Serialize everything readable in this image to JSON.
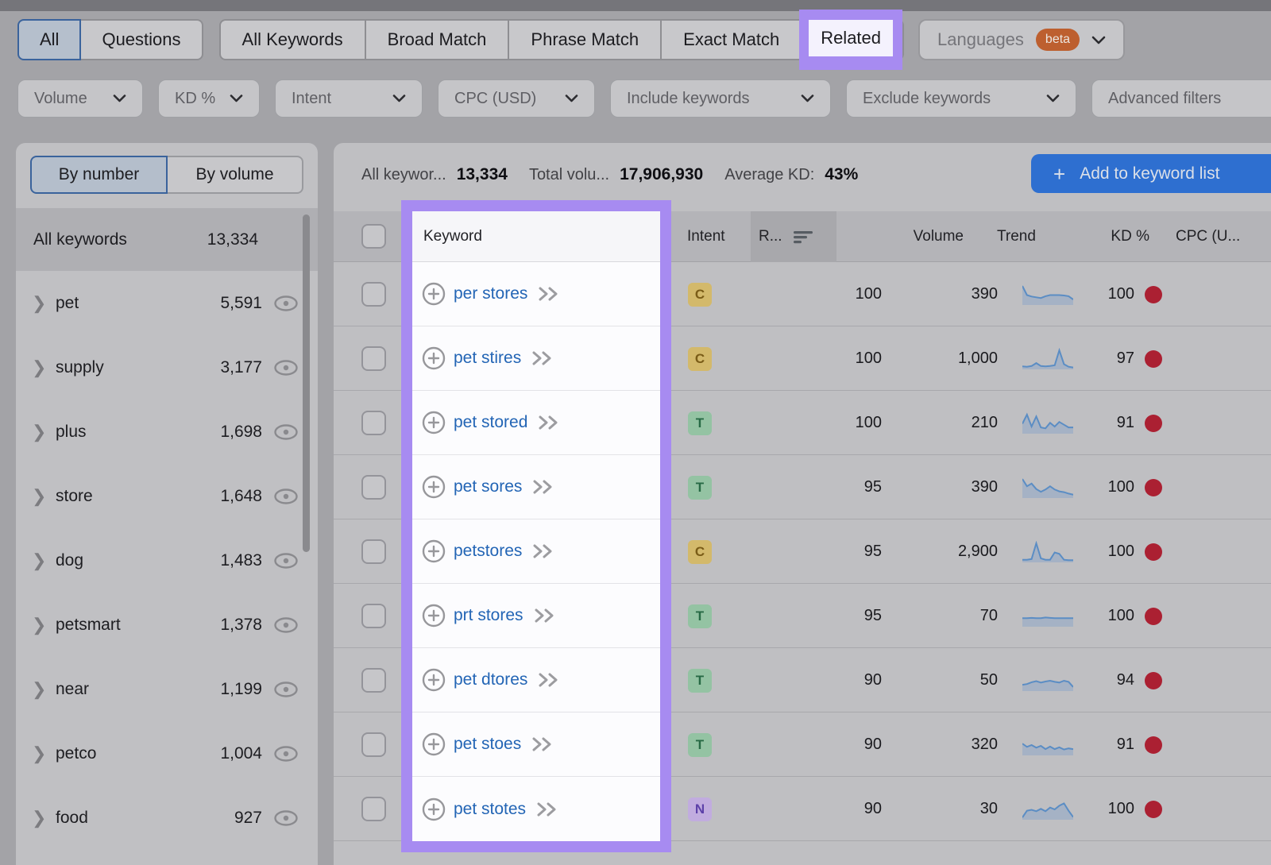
{
  "colors": {
    "highlight_purple": "#a78bf1",
    "primary_button_blue": "#2e6fd0",
    "kd_dot_red": "#ab2032",
    "keyword_link_blue": "#2365b5",
    "beta_badge_orange": "#bd5f2f",
    "sparkline_blue": "#5b8dc4",
    "intent": {
      "C": {
        "bg": "#d3b96b",
        "text": "#7a5c17"
      },
      "T": {
        "bg": "#94c3a3",
        "text": "#276a45"
      },
      "N": {
        "bg": "#c1acdf",
        "text": "#5d41a9"
      }
    }
  },
  "top_tabs": {
    "question_group": [
      {
        "label": "All",
        "selected": true
      },
      {
        "label": "Questions",
        "selected": false
      }
    ],
    "match_group": [
      {
        "label": "All Keywords",
        "highlighted": false
      },
      {
        "label": "Broad Match",
        "highlighted": false
      },
      {
        "label": "Phrase Match",
        "highlighted": false
      },
      {
        "label": "Exact Match",
        "highlighted": false
      },
      {
        "label": "Related",
        "highlighted": true
      }
    ],
    "languages": {
      "label": "Languages",
      "badge": "beta"
    }
  },
  "filter_bar": {
    "items": [
      {
        "label": "Volume"
      },
      {
        "label": "KD %"
      },
      {
        "label": "Intent"
      },
      {
        "label": "CPC (USD)"
      },
      {
        "label": "Include keywords"
      },
      {
        "label": "Exclude keywords"
      },
      {
        "label": "Advanced filters"
      }
    ]
  },
  "sidebar": {
    "toggle": [
      {
        "label": "By number",
        "selected": true
      },
      {
        "label": "By volume",
        "selected": false
      }
    ],
    "all_row": {
      "label": "All keywords",
      "count": "13,334"
    },
    "groups": [
      {
        "label": "pet",
        "count": "5,591"
      },
      {
        "label": "supply",
        "count": "3,177"
      },
      {
        "label": "plus",
        "count": "1,698"
      },
      {
        "label": "store",
        "count": "1,648"
      },
      {
        "label": "dog",
        "count": "1,483"
      },
      {
        "label": "petsmart",
        "count": "1,378"
      },
      {
        "label": "near",
        "count": "1,199"
      },
      {
        "label": "petco",
        "count": "1,004"
      },
      {
        "label": "food",
        "count": "927"
      }
    ]
  },
  "summary": {
    "all_keywords_label": "All keywor...",
    "all_keywords_value": "13,334",
    "total_volume_label": "Total volu...",
    "total_volume_value": "17,906,930",
    "average_kd_label": "Average KD:",
    "average_kd_value": "43%",
    "add_button_label": "Add to keyword list"
  },
  "table": {
    "headers": {
      "keyword": "Keyword",
      "intent": "Intent",
      "related": "R...",
      "volume": "Volume",
      "trend": "Trend",
      "kd": "KD %",
      "cpc": "CPC (U..."
    },
    "sort": {
      "column": "related",
      "direction": "desc"
    },
    "rows": [
      {
        "keyword": "per stores",
        "intent": "C",
        "related": "100",
        "volume": "390",
        "kd": "100",
        "trend": [
          1,
          0.5,
          0.42,
          0.38,
          0.34,
          0.44,
          0.5,
          0.5,
          0.5,
          0.48,
          0.44,
          0.26
        ]
      },
      {
        "keyword": "pet stires",
        "intent": "C",
        "related": "100",
        "volume": "1,000",
        "kd": "97",
        "trend": [
          0.12,
          0.1,
          0.14,
          0.3,
          0.14,
          0.12,
          0.14,
          0.18,
          1,
          0.24,
          0.1,
          0.06
        ]
      },
      {
        "keyword": "pet stored",
        "intent": "T",
        "related": "100",
        "volume": "210",
        "kd": "91",
        "trend": [
          0.5,
          1,
          0.35,
          0.9,
          0.3,
          0.25,
          0.55,
          0.35,
          0.6,
          0.45,
          0.3,
          0.3
        ]
      },
      {
        "keyword": "pet sores",
        "intent": "T",
        "related": "95",
        "volume": "390",
        "kd": "100",
        "trend": [
          1,
          0.6,
          0.75,
          0.45,
          0.3,
          0.42,
          0.6,
          0.42,
          0.32,
          0.28,
          0.2,
          0.14
        ]
      },
      {
        "keyword": "petstores",
        "intent": "C",
        "related": "95",
        "volume": "2,900",
        "kd": "100",
        "trend": [
          0.1,
          0.1,
          0.14,
          1,
          0.18,
          0.1,
          0.1,
          0.5,
          0.42,
          0.1,
          0.08,
          0.08
        ]
      },
      {
        "keyword": "prt stores",
        "intent": "T",
        "related": "95",
        "volume": "70",
        "kd": "100",
        "trend": [
          0.42,
          0.42,
          0.44,
          0.42,
          0.42,
          0.46,
          0.44,
          0.42,
          0.42,
          0.42,
          0.42,
          0.42
        ]
      },
      {
        "keyword": "pet dtores",
        "intent": "T",
        "related": "90",
        "volume": "50",
        "kd": "94",
        "trend": [
          0.3,
          0.34,
          0.44,
          0.5,
          0.42,
          0.48,
          0.52,
          0.46,
          0.42,
          0.52,
          0.46,
          0.18
        ]
      },
      {
        "keyword": "pet stoes",
        "intent": "T",
        "related": "90",
        "volume": "320",
        "kd": "91",
        "trend": [
          0.6,
          0.42,
          0.52,
          0.38,
          0.48,
          0.3,
          0.44,
          0.3,
          0.4,
          0.28,
          0.34,
          0.3
        ]
      },
      {
        "keyword": "pet stotes",
        "intent": "N",
        "related": "90",
        "volume": "30",
        "kd": "100",
        "trend": [
          0.08,
          0.45,
          0.5,
          0.42,
          0.55,
          0.42,
          0.62,
          0.52,
          0.72,
          0.85,
          0.45,
          0.1
        ]
      }
    ]
  }
}
